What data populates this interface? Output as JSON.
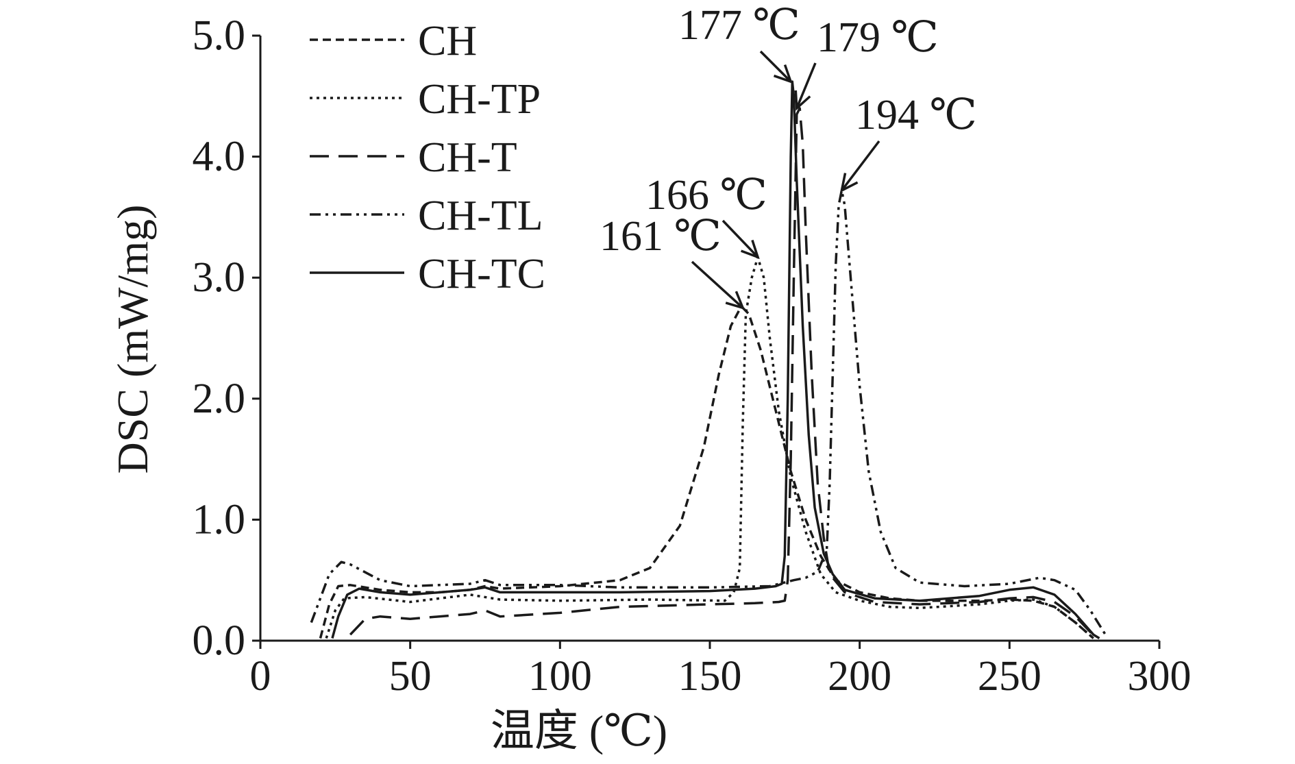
{
  "chart_data": {
    "type": "line",
    "xlabel": "温度 (℃)",
    "ylabel": "DSC (mW/mg)",
    "xlim": [
      0,
      300
    ],
    "ylim": [
      0,
      5
    ],
    "xticks": [
      "0",
      "50",
      "100",
      "150",
      "200",
      "250",
      "300"
    ],
    "yticks": [
      "0.0",
      "1.0",
      "2.0",
      "3.0",
      "4.0",
      "5.0"
    ],
    "grid": false,
    "legend_position": "top-left",
    "series": [
      {
        "name": "CH",
        "dash": "short-dash",
        "points": [
          [
            20,
            0.02
          ],
          [
            23,
            0.3
          ],
          [
            26,
            0.45
          ],
          [
            30,
            0.46
          ],
          [
            40,
            0.42
          ],
          [
            50,
            0.4
          ],
          [
            60,
            0.4
          ],
          [
            70,
            0.42
          ],
          [
            75,
            0.45
          ],
          [
            80,
            0.43
          ],
          [
            100,
            0.45
          ],
          [
            120,
            0.5
          ],
          [
            130,
            0.6
          ],
          [
            140,
            0.95
          ],
          [
            148,
            1.6
          ],
          [
            153,
            2.2
          ],
          [
            157,
            2.6
          ],
          [
            160,
            2.74
          ],
          [
            161,
            2.75
          ],
          [
            163,
            2.7
          ],
          [
            167,
            2.4
          ],
          [
            172,
            1.9
          ],
          [
            177,
            1.4
          ],
          [
            182,
            1.0
          ],
          [
            187,
            0.7
          ],
          [
            192,
            0.5
          ],
          [
            200,
            0.4
          ],
          [
            210,
            0.35
          ],
          [
            220,
            0.33
          ],
          [
            240,
            0.33
          ],
          [
            250,
            0.34
          ],
          [
            258,
            0.33
          ],
          [
            265,
            0.28
          ],
          [
            272,
            0.15
          ],
          [
            278,
            0.02
          ]
        ]
      },
      {
        "name": "CH-TP",
        "dash": "dotted",
        "points": [
          [
            22,
            0.02
          ],
          [
            25,
            0.25
          ],
          [
            28,
            0.35
          ],
          [
            35,
            0.36
          ],
          [
            50,
            0.32
          ],
          [
            70,
            0.38
          ],
          [
            80,
            0.34
          ],
          [
            100,
            0.33
          ],
          [
            130,
            0.34
          ],
          [
            155,
            0.33
          ],
          [
            158,
            0.4
          ],
          [
            160,
            0.6
          ],
          [
            161,
            1.8
          ],
          [
            162,
            2.7
          ],
          [
            164,
            3.0
          ],
          [
            166,
            3.17
          ],
          [
            168,
            3.0
          ],
          [
            170,
            2.5
          ],
          [
            173,
            1.9
          ],
          [
            177,
            1.35
          ],
          [
            182,
            0.9
          ],
          [
            187,
            0.55
          ],
          [
            192,
            0.4
          ],
          [
            200,
            0.33
          ],
          [
            210,
            0.28
          ],
          [
            220,
            0.27
          ],
          [
            240,
            0.3
          ],
          [
            250,
            0.33
          ],
          [
            258,
            0.34
          ],
          [
            265,
            0.28
          ],
          [
            272,
            0.15
          ],
          [
            278,
            0.02
          ]
        ]
      },
      {
        "name": "CH-T",
        "dash": "long-dash",
        "points": [
          [
            30,
            0.05
          ],
          [
            35,
            0.18
          ],
          [
            40,
            0.2
          ],
          [
            50,
            0.18
          ],
          [
            70,
            0.22
          ],
          [
            75,
            0.25
          ],
          [
            80,
            0.2
          ],
          [
            100,
            0.23
          ],
          [
            120,
            0.28
          ],
          [
            150,
            0.3
          ],
          [
            165,
            0.31
          ],
          [
            173,
            0.32
          ],
          [
            175,
            0.33
          ],
          [
            176,
            0.5
          ],
          [
            177,
            1.5
          ],
          [
            178,
            3.0
          ],
          [
            179,
            4.35
          ],
          [
            180,
            4.4
          ],
          [
            181,
            4.1
          ],
          [
            182,
            3.4
          ],
          [
            184,
            2.2
          ],
          [
            186,
            1.3
          ],
          [
            188,
            0.85
          ],
          [
            190,
            0.55
          ],
          [
            195,
            0.4
          ],
          [
            205,
            0.32
          ],
          [
            220,
            0.3
          ],
          [
            240,
            0.32
          ],
          [
            250,
            0.35
          ],
          [
            258,
            0.36
          ],
          [
            265,
            0.32
          ],
          [
            272,
            0.2
          ],
          [
            279,
            0.02
          ]
        ]
      },
      {
        "name": "CH-TL",
        "dash": "dash-dot-dot",
        "points": [
          [
            17,
            0.15
          ],
          [
            20,
            0.35
          ],
          [
            23,
            0.55
          ],
          [
            27,
            0.65
          ],
          [
            30,
            0.63
          ],
          [
            40,
            0.5
          ],
          [
            50,
            0.45
          ],
          [
            70,
            0.47
          ],
          [
            75,
            0.5
          ],
          [
            80,
            0.46
          ],
          [
            100,
            0.46
          ],
          [
            120,
            0.44
          ],
          [
            150,
            0.44
          ],
          [
            170,
            0.45
          ],
          [
            178,
            0.5
          ],
          [
            182,
            0.52
          ],
          [
            186,
            0.57
          ],
          [
            189,
            0.75
          ],
          [
            190,
            1.3
          ],
          [
            191,
            2.2
          ],
          [
            192,
            3.1
          ],
          [
            193,
            3.6
          ],
          [
            194,
            3.72
          ],
          [
            195,
            3.6
          ],
          [
            197,
            3.0
          ],
          [
            200,
            2.1
          ],
          [
            203,
            1.4
          ],
          [
            207,
            0.9
          ],
          [
            212,
            0.6
          ],
          [
            220,
            0.48
          ],
          [
            235,
            0.45
          ],
          [
            250,
            0.47
          ],
          [
            260,
            0.52
          ],
          [
            265,
            0.5
          ],
          [
            272,
            0.42
          ],
          [
            277,
            0.25
          ],
          [
            282,
            0.05
          ]
        ]
      },
      {
        "name": "CH-TC",
        "dash": "solid",
        "points": [
          [
            24,
            0.02
          ],
          [
            26,
            0.2
          ],
          [
            29,
            0.38
          ],
          [
            33,
            0.43
          ],
          [
            40,
            0.4
          ],
          [
            50,
            0.38
          ],
          [
            70,
            0.42
          ],
          [
            75,
            0.44
          ],
          [
            80,
            0.4
          ],
          [
            100,
            0.4
          ],
          [
            120,
            0.4
          ],
          [
            150,
            0.41
          ],
          [
            165,
            0.43
          ],
          [
            172,
            0.45
          ],
          [
            174,
            0.47
          ],
          [
            175,
            0.7
          ],
          [
            176,
            2.0
          ],
          [
            177,
            4.0
          ],
          [
            177.5,
            4.62
          ],
          [
            178,
            4.5
          ],
          [
            179,
            3.8
          ],
          [
            181,
            2.6
          ],
          [
            183,
            1.7
          ],
          [
            185,
            1.1
          ],
          [
            188,
            0.72
          ],
          [
            191,
            0.55
          ],
          [
            195,
            0.42
          ],
          [
            205,
            0.35
          ],
          [
            220,
            0.33
          ],
          [
            240,
            0.37
          ],
          [
            250,
            0.42
          ],
          [
            258,
            0.44
          ],
          [
            265,
            0.38
          ],
          [
            272,
            0.22
          ],
          [
            278,
            0.05
          ],
          [
            280,
            0.02
          ]
        ]
      }
    ],
    "annotations": [
      {
        "text": "161 ℃",
        "x": 161,
        "y": 2.75
      },
      {
        "text": "166 ℃",
        "x": 166,
        "y": 3.17
      },
      {
        "text": "177 ℃",
        "x": 177,
        "y": 4.62
      },
      {
        "text": "179 ℃",
        "x": 179,
        "y": 4.4
      },
      {
        "text": "194 ℃",
        "x": 194,
        "y": 3.72
      }
    ]
  }
}
